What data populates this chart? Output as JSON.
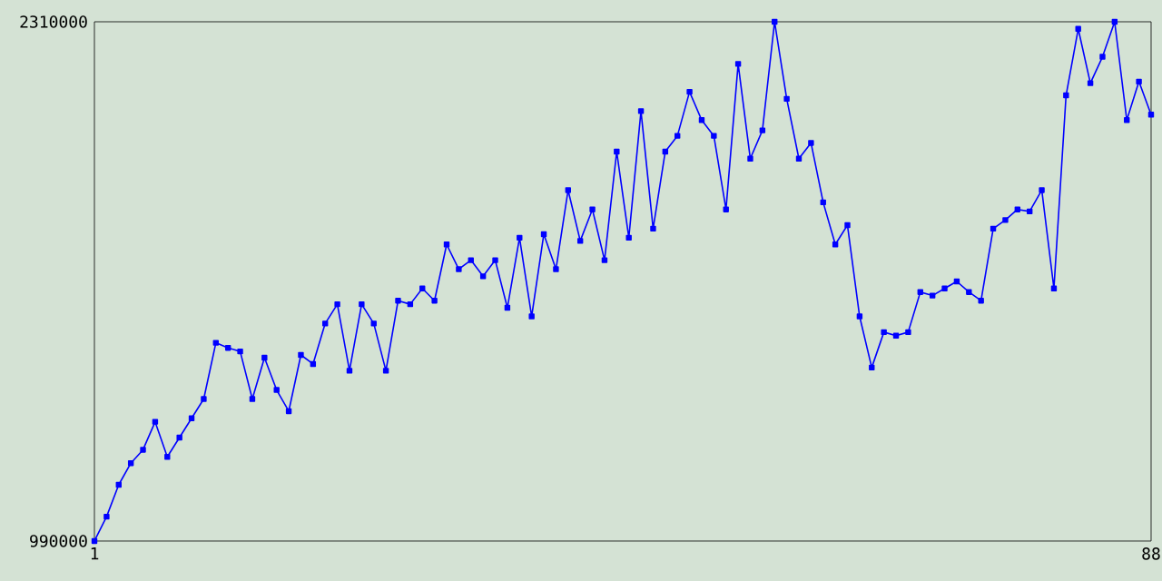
{
  "chart_data": {
    "type": "line",
    "marker": "square",
    "line_style": "solid",
    "grid": false,
    "x": [
      1,
      2,
      3,
      4,
      5,
      6,
      7,
      8,
      9,
      10,
      11,
      12,
      13,
      14,
      15,
      16,
      17,
      18,
      19,
      20,
      21,
      22,
      23,
      24,
      25,
      26,
      27,
      28,
      29,
      30,
      31,
      32,
      33,
      34,
      35,
      36,
      37,
      38,
      39,
      40,
      41,
      42,
      43,
      44,
      45,
      46,
      47,
      48,
      49,
      50,
      51,
      52,
      53,
      54,
      55,
      56,
      57,
      58,
      59,
      60,
      61,
      62,
      63,
      64,
      65,
      66,
      67,
      68,
      69,
      70,
      71,
      72,
      73,
      74,
      75,
      76,
      77,
      78,
      79,
      80,
      81,
      82,
      83,
      84,
      85,
      86,
      87,
      88
    ],
    "series": [
      {
        "color": "#0000ff",
        "values": [
          990000,
          1052000,
          1133000,
          1188000,
          1222000,
          1293000,
          1204000,
          1253000,
          1302000,
          1351000,
          1494000,
          1481000,
          1472000,
          1351000,
          1456000,
          1374000,
          1320000,
          1463000,
          1440000,
          1543000,
          1592000,
          1423000,
          1592000,
          1543000,
          1423000,
          1601000,
          1592000,
          1632000,
          1601000,
          1744000,
          1681000,
          1704000,
          1663000,
          1704000,
          1583000,
          1761000,
          1561000,
          1770000,
          1681000,
          1882000,
          1753000,
          1833000,
          1704000,
          1980000,
          1761000,
          2083000,
          1784000,
          1980000,
          2020000,
          2132000,
          2060000,
          2020000,
          1833000,
          2203000,
          1962000,
          2034000,
          2310000,
          2114000,
          1962000,
          2002000,
          1851000,
          1744000,
          1793000,
          1561000,
          1431000,
          1521000,
          1512000,
          1521000,
          1623000,
          1614000,
          1632000,
          1650000,
          1623000,
          1601000,
          1784000,
          1806000,
          1833000,
          1828000,
          1882000,
          1632000,
          2123000,
          2292000,
          2154000,
          2221000,
          2310000,
          2060000,
          2158000,
          2074000
        ]
      }
    ],
    "xlim": [
      1,
      88
    ],
    "xticks": [
      1,
      88
    ],
    "ylim": [
      990000,
      2310000
    ],
    "yticks": [
      990000,
      2310000
    ]
  }
}
